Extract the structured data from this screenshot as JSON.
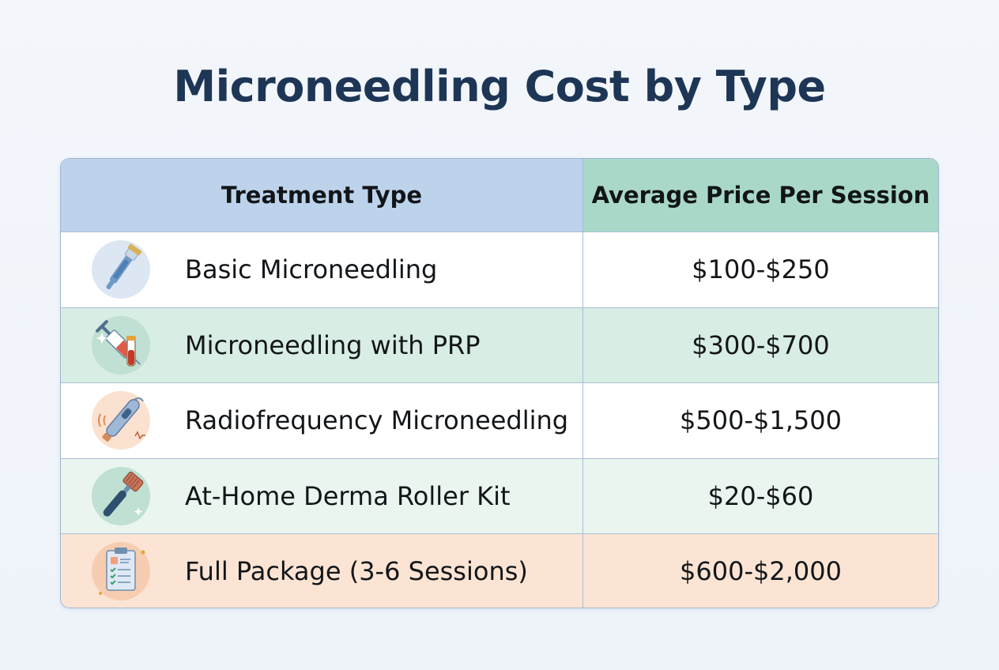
{
  "page": {
    "title": "Microneedling Cost by Type"
  },
  "table": {
    "headers": {
      "type": "Treatment Type",
      "price": "Average Price Per Session"
    },
    "rows": [
      {
        "type": "Basic Microneedling",
        "price": "$100-$250",
        "icon": "derma-pen-icon"
      },
      {
        "type": "Microneedling with PRP",
        "price": "$300-$700",
        "icon": "syringe-blood-vial-icon"
      },
      {
        "type": "Radiofrequency Microneedling",
        "price": "$500-$1,500",
        "icon": "rf-device-icon"
      },
      {
        "type": "At-Home Derma Roller Kit",
        "price": "$20-$60",
        "icon": "derma-roller-icon"
      },
      {
        "type": "Full Package (3-6 Sessions)",
        "price": "$600-$2,000",
        "icon": "clipboard-checklist-icon"
      }
    ]
  },
  "colors": {
    "title": "#1e3655",
    "header_type_bg": "#bdd3ec",
    "header_price_bg": "#a9d8c8",
    "row_green": "#d8ede4",
    "row_light_green": "#eaf5f0",
    "row_peach": "#fbe4d3",
    "border": "#a9bed4"
  }
}
